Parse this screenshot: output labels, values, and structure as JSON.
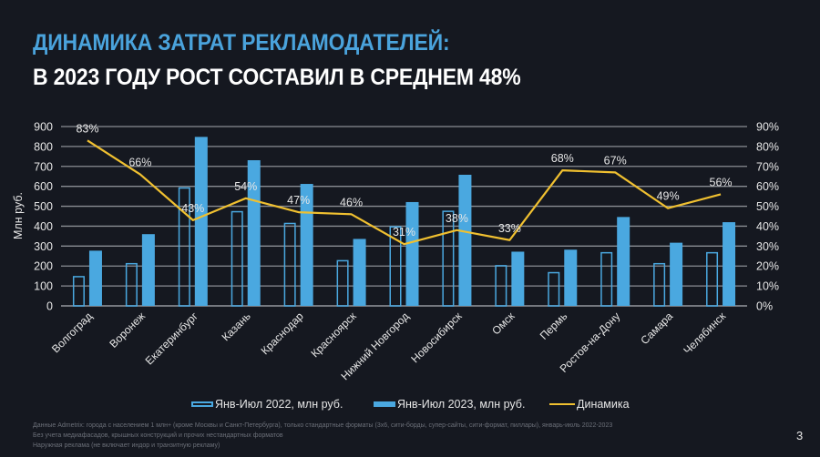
{
  "header": {
    "title_line1": "ДИНАМИКА ЗАТРАТ РЕКЛАМОДАТЕЛЕЙ:",
    "title_line2": "В 2023 ГОДУ РОСТ СОСТАВИЛ В СРЕДНЕМ 48%"
  },
  "colors": {
    "background": "#151820",
    "accent_title": "#4aa3dc",
    "bar": "#4aa8e0",
    "line": "#f0c030",
    "grid": "#8a8d93"
  },
  "chart_data": {
    "type": "bar",
    "title": "",
    "xlabel": "",
    "ylabel": "Млн руб.",
    "ylim": [
      0,
      900
    ],
    "y_ticks": [
      "0",
      "100",
      "200",
      "300",
      "400",
      "500",
      "600",
      "700",
      "800",
      "900"
    ],
    "y2lim": [
      0,
      90
    ],
    "y2_ticks": [
      "0%",
      "10%",
      "20%",
      "30%",
      "40%",
      "50%",
      "60%",
      "70%",
      "80%",
      "90%"
    ],
    "grid": true,
    "legend_position": "bottom",
    "categories": [
      "Волгоград",
      "Воронеж",
      "Екатеринбург",
      "Казань",
      "Краснодар",
      "Красноярск",
      "Нижний Новгород",
      "Новосибирск",
      "Омск",
      "Пермь",
      "Ростов-на-Дону",
      "Самара",
      "Челябинск"
    ],
    "series": [
      {
        "name": "Янв-Июл 2022, млн руб.",
        "type": "bar",
        "style": "outline",
        "values": [
          150,
          215,
          595,
          476,
          417,
          230,
          400,
          478,
          205,
          170,
          270,
          215,
          270
        ]
      },
      {
        "name": "Янв-Июл 2023, млн руб.",
        "type": "bar",
        "style": "filled",
        "values": [
          277,
          360,
          848,
          731,
          612,
          336,
          521,
          658,
          272,
          282,
          446,
          317,
          420
        ]
      },
      {
        "name": "Динамика",
        "type": "line",
        "axis": "right",
        "values": [
          83,
          66,
          43,
          54,
          47,
          46,
          31,
          38,
          33,
          68,
          67,
          49,
          56
        ],
        "labels": [
          "83%",
          "66%",
          "43%",
          "54%",
          "47%",
          "46%",
          "31%",
          "38%",
          "33%",
          "68%",
          "67%",
          "49%",
          "56%"
        ]
      }
    ]
  },
  "notes": [
    "Данные Admetrix: города с населением 1 млн+ (кроме Москвы и Санкт-Петербурга), только стандартные форматы (3х6, сити-борды, супер-сайты, сити-формат, пиллары), январь-июль 2022-2023",
    "Без учета медиафасадов, крышных конструкций и прочих нестандартных форматов",
    "Наружная реклама (не включает индор и транзитную рекламу)"
  ],
  "page_number": "3"
}
